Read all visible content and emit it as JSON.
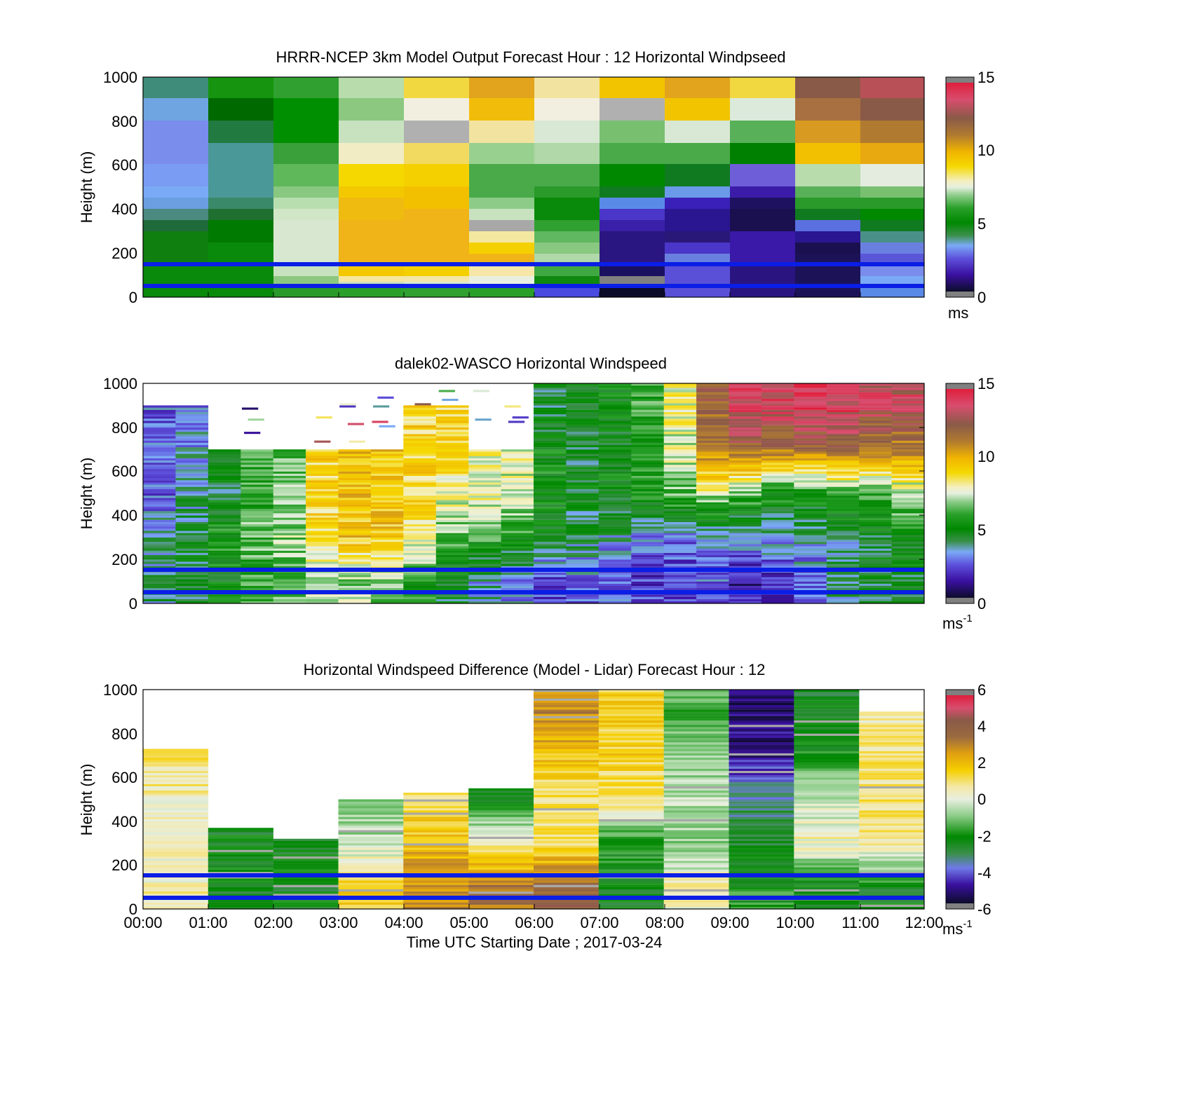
{
  "panels": [
    {
      "title": "HRRR-NCEP 3km Model Output   Forecast Hour : 12 Horizontal Windpseed",
      "ylabel": "Height (m)",
      "unit": "ms",
      "unit_sup": "",
      "cbar_ticks": [
        "15",
        "10",
        "5",
        "0"
      ]
    },
    {
      "title": "dalek02-WASCO  Horizontal Windspeed",
      "ylabel": "Height (m)",
      "unit": "ms",
      "unit_sup": "-1",
      "cbar_ticks": [
        "15",
        "10",
        "5",
        "0"
      ]
    },
    {
      "title": "Horizontal Windspeed Difference (Model - Lidar) Forecast Hour : 12",
      "ylabel": "Height (m)",
      "unit": "ms",
      "unit_sup": "-1",
      "cbar_ticks": [
        "6",
        "4",
        "2",
        "0",
        "-2",
        "-4",
        "-6"
      ]
    }
  ],
  "yticks": [
    "1000",
    "800",
    "600",
    "400",
    "200",
    "0"
  ],
  "xticks": [
    "00:00",
    "01:00",
    "02:00",
    "03:00",
    "04:00",
    "05:00",
    "06:00",
    "07:00",
    "08:00",
    "09:00",
    "10:00",
    "11:00",
    "12:00"
  ],
  "xlabel": "Time UTC  Starting Date ; 2017-03-24",
  "chart_data": [
    {
      "type": "heatmap",
      "title": "HRRR-NCEP 3km Model Output   Forecast Hour : 12 Horizontal Windpseed",
      "xlabel": "",
      "ylabel": "Height (m)",
      "x_hours": [
        0,
        1,
        2,
        3,
        4,
        5,
        6,
        7,
        8,
        9,
        10,
        11
      ],
      "y_levels_m": [
        900,
        800,
        700,
        600,
        500,
        400,
        300,
        200,
        100,
        30
      ],
      "values_ms": [
        [
          5.0,
          5.0,
          5.0,
          6.5,
          9.5,
          10.5,
          8.5,
          9.5,
          10.5,
          9.0,
          12.0,
          14.0
        ],
        [
          3.5,
          4.0,
          4.5,
          6.0,
          7.5,
          9.5,
          7.5,
          7.5,
          9.5,
          7.0,
          11.0,
          12.0
        ],
        [
          3.0,
          4.5,
          4.5,
          7.0,
          8.5,
          8.0,
          7.0,
          6.0,
          7.0,
          5.5,
          10.5,
          11.0
        ],
        [
          3.0,
          4.0,
          5.0,
          8.0,
          9.0,
          6.5,
          6.5,
          4.5,
          5.0,
          2.5,
          9.5,
          8.0
        ],
        [
          3.0,
          4.5,
          6.0,
          9.5,
          9.5,
          5.5,
          5.0,
          4.5,
          3.0,
          1.5,
          5.5,
          5.0
        ],
        [
          3.5,
          4.5,
          7.0,
          9.5,
          10.0,
          6.5,
          4.5,
          2.5,
          2.0,
          1.0,
          4.5,
          4.5
        ],
        [
          4.5,
          4.5,
          7.5,
          10.0,
          10.0,
          8.0,
          6.0,
          1.5,
          1.5,
          1.0,
          2.5,
          4.0
        ],
        [
          4.5,
          4.5,
          7.0,
          10.0,
          10.0,
          8.5,
          5.5,
          1.5,
          2.0,
          1.5,
          1.0,
          3.0
        ],
        [
          4.5,
          4.5,
          6.0,
          9.0,
          8.5,
          7.5,
          5.0,
          0.5,
          3.0,
          1.5,
          1.0,
          3.0
        ],
        [
          4.5,
          4.5,
          5.0,
          7.5,
          7.0,
          6.5,
          3.0,
          0.5,
          2.5,
          1.5,
          1.5,
          3.5
        ]
      ],
      "colorbar": {
        "min": 0,
        "max": 15,
        "ticks": [
          0,
          5,
          10,
          15
        ],
        "unit": "ms"
      },
      "reference_lines_m": [
        150,
        50
      ],
      "xlim_hours": [
        0,
        12
      ],
      "ylim_m": [
        0,
        1000
      ]
    },
    {
      "type": "heatmap",
      "title": "dalek02-WASCO  Horizontal Windspeed",
      "xlabel": "",
      "ylabel": "Height (m)",
      "description_values": "approximate readings at 0.5 h intervals, 200 m bins",
      "x_hours": [
        0.25,
        0.75,
        1.25,
        1.75,
        2.25,
        2.75,
        3.25,
        3.75,
        4.25,
        4.75,
        5.25,
        5.75,
        6.25,
        6.75,
        7.25,
        7.75,
        8.25,
        8.75,
        9.25,
        9.75,
        10.25,
        10.75,
        11.25,
        11.75
      ],
      "y_levels_m": [
        900,
        700,
        500,
        300,
        100
      ],
      "values_ms": [
        [
          null,
          null,
          null,
          null,
          null,
          null,
          null,
          null,
          null,
          null,
          null,
          null,
          4.5,
          5.0,
          5.0,
          6.0,
          8.0,
          12.0,
          14.0,
          14.0,
          14.5,
          14.0,
          13.5,
          13.5
        ],
        [
          2.5,
          3.0,
          null,
          null,
          null,
          null,
          null,
          null,
          9.0,
          9.0,
          null,
          null,
          5.0,
          4.5,
          5.0,
          5.5,
          7.5,
          11.5,
          12.0,
          11.5,
          11.5,
          12.0,
          11.0,
          11.0
        ],
        [
          2.5,
          3.5,
          4.5,
          6.0,
          6.5,
          9.0,
          9.5,
          9.5,
          9.0,
          8.0,
          8.0,
          7.5,
          5.5,
          4.5,
          5.0,
          5.5,
          6.5,
          7.5,
          6.5,
          5.5,
          5.5,
          6.0,
          6.0,
          7.0
        ],
        [
          3.5,
          4.5,
          5.5,
          6.5,
          7.0,
          8.5,
          9.5,
          9.5,
          8.5,
          6.5,
          6.0,
          5.5,
          4.5,
          4.0,
          3.5,
          3.0,
          2.5,
          3.0,
          3.0,
          3.5,
          3.5,
          4.0,
          4.5,
          5.0
        ],
        [
          4.0,
          4.5,
          5.0,
          6.0,
          6.5,
          7.5,
          7.0,
          6.5,
          5.5,
          4.5,
          3.5,
          3.0,
          2.0,
          2.5,
          2.5,
          2.0,
          2.0,
          2.5,
          1.5,
          1.5,
          2.5,
          4.0,
          4.5,
          4.5
        ]
      ],
      "colorbar": {
        "min": 0,
        "max": 15,
        "ticks": [
          0,
          5,
          10,
          15
        ],
        "unit": "ms-1"
      },
      "reference_lines_m": [
        150,
        50
      ],
      "xlim_hours": [
        0,
        12
      ],
      "ylim_m": [
        0,
        1000
      ]
    },
    {
      "type": "heatmap",
      "title": "Horizontal Windspeed Difference (Model - Lidar) Forecast Hour : 12",
      "xlabel": "Time UTC  Starting Date ; 2017-03-24",
      "ylabel": "Height (m)",
      "x_hours": [
        0,
        1,
        2,
        3,
        4,
        5,
        6,
        7,
        8,
        9,
        10,
        11
      ],
      "column_top_m": [
        730,
        370,
        320,
        500,
        530,
        550,
        1000,
        1000,
        1000,
        1000,
        1000,
        900
      ],
      "y_levels_m": [
        900,
        700,
        500,
        300,
        100
      ],
      "values_ms": [
        [
          null,
          null,
          null,
          null,
          null,
          null,
          3.0,
          1.5,
          -1.5,
          -5.5,
          -2.5,
          0.5
        ],
        [
          1.0,
          null,
          null,
          null,
          null,
          null,
          2.0,
          1.5,
          -1.0,
          -5.0,
          -2.0,
          1.0
        ],
        [
          0.5,
          null,
          null,
          -1.0,
          1.0,
          -2.5,
          1.0,
          1.0,
          -0.5,
          -3.5,
          -0.5,
          1.0
        ],
        [
          0.5,
          -2.5,
          -2.5,
          -0.5,
          2.0,
          0.5,
          1.0,
          -2.0,
          -1.0,
          -2.5,
          0.5,
          1.0
        ],
        [
          0.5,
          -2.5,
          -2.5,
          1.5,
          3.0,
          3.5,
          4.0,
          -2.5,
          0.5,
          -2.0,
          -2.5,
          -2.5
        ]
      ],
      "colorbar": {
        "min": -6,
        "max": 6,
        "ticks": [
          -6,
          -4,
          -2,
          0,
          2,
          4,
          6
        ],
        "unit": "ms-1"
      },
      "reference_lines_m": [
        150,
        50
      ],
      "xlim_hours": [
        0,
        12
      ],
      "ylim_m": [
        0,
        1000
      ]
    }
  ]
}
